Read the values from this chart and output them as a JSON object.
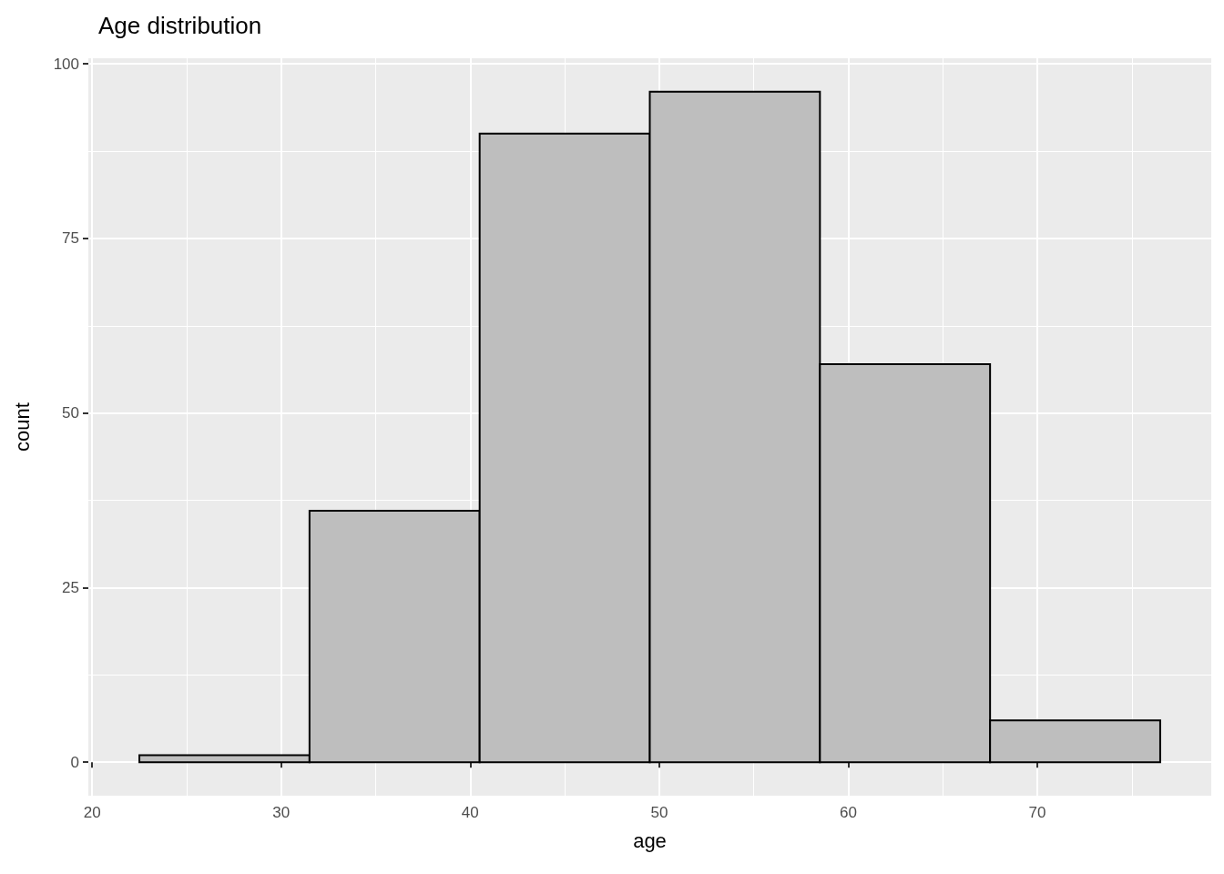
{
  "chart_data": {
    "type": "histogram",
    "title": "Age distribution",
    "xlabel": "age",
    "ylabel": "count",
    "bins": [
      22.5,
      31.5,
      40.5,
      49.5,
      58.5,
      67.5,
      76.5
    ],
    "values": [
      1,
      36,
      90,
      96,
      57,
      6
    ],
    "color": "#bebebe",
    "xlim": [
      19.8,
      79.2
    ],
    "xticks": [
      20,
      30,
      40,
      50,
      60,
      70
    ],
    "ylim": [
      -4.8,
      100.8
    ],
    "yticks": [
      0,
      25,
      50,
      75,
      100
    ],
    "grid": true
  }
}
